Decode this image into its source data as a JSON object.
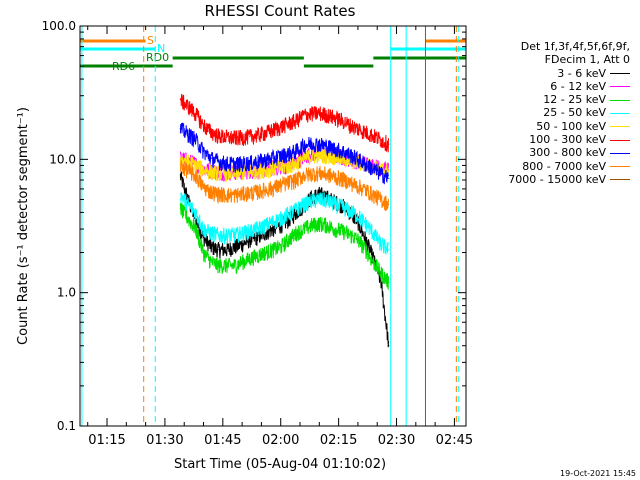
{
  "chart_data": {
    "type": "line",
    "title": "RHESSI Count Rates",
    "xlabel": "Start Time (05-Aug-04 01:10:02)",
    "ylabel": "Count Rate (s⁻¹ detector segment⁻¹)",
    "ylog": true,
    "ylim": [
      0.1,
      100
    ],
    "yticks": [
      "0.1",
      "1.0",
      "10.0",
      "100.0"
    ],
    "xlim_minutes": [
      68,
      168
    ],
    "xticks": [
      "01:15",
      "01:30",
      "01:45",
      "02:00",
      "02:15",
      "02:30",
      "02:45"
    ],
    "xticks_minutes": [
      75,
      90,
      105,
      120,
      135,
      150,
      165
    ],
    "legend_header": [
      "Det 1f,3f,4f,5f,6f,9f,",
      "FDecim 1, Att 0"
    ],
    "x": [
      86,
      88,
      90,
      92,
      94,
      96,
      98,
      100,
      102,
      104,
      106,
      108,
      110,
      112,
      114,
      116,
      118,
      120,
      122,
      124,
      126,
      128,
      130,
      132,
      134,
      136,
      138,
      140,
      142,
      144,
      146,
      148,
      150,
      152,
      154,
      156
    ],
    "series": [
      {
        "name": "3 - 6 keV",
        "color": "#000000",
        "values": [
          null,
          null,
          null,
          null,
          7.5,
          5.0,
          3.5,
          2.6,
          2.2,
          2.1,
          2.1,
          2.2,
          2.3,
          2.5,
          2.6,
          2.8,
          3.0,
          3.2,
          3.5,
          4.0,
          4.5,
          5.2,
          5.5,
          5.2,
          4.8,
          4.5,
          4.0,
          3.4,
          2.5,
          1.8,
          1.2,
          0.4,
          null,
          null,
          null,
          null
        ]
      },
      {
        "name": "6 - 12 keV",
        "color": "#ff00ff",
        "values": [
          null,
          null,
          null,
          null,
          10.2,
          9.8,
          9.2,
          8.5,
          8.2,
          8.0,
          8.0,
          8.0,
          8.1,
          8.2,
          8.3,
          8.4,
          8.6,
          8.8,
          9.0,
          9.5,
          10.5,
          11.0,
          11.2,
          11.0,
          10.7,
          10.4,
          10.0,
          9.7,
          9.3,
          9.0,
          8.6,
          8.4,
          null,
          null,
          null,
          null
        ]
      },
      {
        "name": "12 - 25 keV",
        "color": "#00e000",
        "values": [
          null,
          null,
          null,
          null,
          4.3,
          3.6,
          3.0,
          2.0,
          1.7,
          1.6,
          1.6,
          1.6,
          1.7,
          1.8,
          1.9,
          2.0,
          2.1,
          2.2,
          2.5,
          2.8,
          3.0,
          3.2,
          3.3,
          3.2,
          3.0,
          2.9,
          2.7,
          2.5,
          2.1,
          1.7,
          1.4,
          1.2,
          null,
          null,
          null,
          null
        ]
      },
      {
        "name": "25 - 50 keV",
        "color": "#00ffff",
        "values": [
          null,
          null,
          null,
          null,
          5.5,
          4.6,
          4.0,
          3.0,
          2.8,
          2.7,
          2.7,
          2.7,
          2.8,
          2.9,
          3.0,
          3.2,
          3.4,
          3.6,
          3.9,
          4.2,
          4.6,
          4.9,
          5.0,
          4.9,
          4.6,
          4.4,
          4.1,
          3.8,
          3.3,
          2.8,
          2.3,
          2.1,
          null,
          null,
          null,
          null
        ]
      },
      {
        "name": "50 - 100 keV",
        "color": "#ffe000",
        "values": [
          null,
          null,
          null,
          null,
          10.0,
          9.6,
          9.0,
          8.4,
          8.0,
          7.9,
          7.9,
          7.9,
          8.0,
          8.1,
          8.2,
          8.3,
          8.5,
          8.7,
          8.9,
          9.3,
          10.2,
          10.6,
          10.8,
          10.6,
          10.4,
          10.1,
          9.8,
          9.5,
          9.1,
          8.8,
          8.4,
          8.2,
          null,
          null,
          null,
          null
        ]
      },
      {
        "name": "100 - 300 keV",
        "color": "#ff0000",
        "values": [
          null,
          null,
          null,
          null,
          28,
          25,
          22,
          18,
          16,
          15,
          14.6,
          14.5,
          14.6,
          14.8,
          15.2,
          15.8,
          16.5,
          17.5,
          18.5,
          19.5,
          21.5,
          22.0,
          22.2,
          21.5,
          20.5,
          19.5,
          18.0,
          17.0,
          16.0,
          15.0,
          14.0,
          13.0,
          null,
          null,
          null,
          null
        ]
      },
      {
        "name": "300 - 800 keV",
        "color": "#0000ff",
        "values": [
          null,
          null,
          null,
          null,
          17,
          15.5,
          14,
          11.5,
          10.2,
          9.6,
          9.3,
          9.2,
          9.3,
          9.4,
          9.6,
          9.9,
          10.2,
          10.6,
          11.0,
          11.5,
          12.8,
          13.2,
          13.0,
          12.5,
          12.0,
          11.5,
          10.8,
          10.0,
          9.2,
          8.5,
          7.8,
          7.2,
          null,
          null,
          null,
          null
        ]
      },
      {
        "name": "800 - 7000 keV",
        "color": "#ff8000",
        "values": [
          null,
          null,
          null,
          null,
          9.0,
          8.2,
          7.5,
          6.2,
          5.7,
          5.5,
          5.4,
          5.4,
          5.5,
          5.6,
          5.7,
          5.9,
          6.1,
          6.4,
          6.7,
          7.0,
          7.6,
          7.8,
          7.9,
          7.7,
          7.4,
          7.1,
          6.7,
          6.3,
          5.9,
          5.4,
          5.0,
          4.6,
          null,
          null,
          null,
          null
        ]
      },
      {
        "name": "7000 - 15000 keV",
        "color": "#a05000",
        "values": [
          null,
          null,
          null,
          null,
          null,
          null,
          null,
          null,
          null,
          null,
          null,
          null,
          null,
          null,
          null,
          null,
          null,
          null,
          null,
          null,
          null,
          null,
          null,
          null,
          null,
          null,
          null,
          null,
          null,
          null,
          null,
          null,
          null,
          null,
          null,
          null
        ]
      }
    ],
    "annotations": [
      {
        "text": "S",
        "color": "#ff8000"
      },
      {
        "text": "N",
        "color": "#00ffff"
      },
      {
        "text": "RD0",
        "color": "#008000"
      },
      {
        "text": "RD6",
        "color": "#008000"
      }
    ],
    "vlines_minutes": [
      {
        "t": 68.5,
        "color": "#00ffff",
        "style": "solid"
      },
      {
        "t": 84.5,
        "color": "#ff8000",
        "style": "dashed"
      },
      {
        "t": 87.5,
        "color": "#00ffff",
        "style": "dashed"
      },
      {
        "t": 148.5,
        "color": "#00ffff",
        "style": "solid"
      },
      {
        "t": 152.5,
        "color": "#00ffff",
        "style": "solid"
      },
      {
        "t": 157.5,
        "color": "#a05000",
        "style": "solid"
      },
      {
        "t": 165.5,
        "color": "#ff8000",
        "style": "dashed"
      },
      {
        "t": 166.0,
        "color": "#00ffff",
        "style": "dashed"
      }
    ],
    "flag_bars_minutes": [
      {
        "label": "S",
        "color": "#ff8000",
        "level": 1,
        "segments": [
          [
            68,
            85
          ],
          [
            157.5,
            168
          ]
        ]
      },
      {
        "label": "N",
        "color": "#00ffff",
        "level": 2,
        "segments": [
          [
            68,
            87.5
          ],
          [
            148.5,
            168
          ]
        ]
      },
      {
        "label": "RD0",
        "color": "#008000",
        "level": 3,
        "segments": [
          [
            92,
            126
          ],
          [
            144,
            168
          ]
        ]
      },
      {
        "label": "RD6",
        "color": "#008000",
        "level": 4,
        "segments": [
          [
            68,
            92
          ],
          [
            126,
            144
          ]
        ]
      }
    ],
    "grid": false,
    "legend_position": "right",
    "footer": "19-Oct-2021 15:45"
  }
}
